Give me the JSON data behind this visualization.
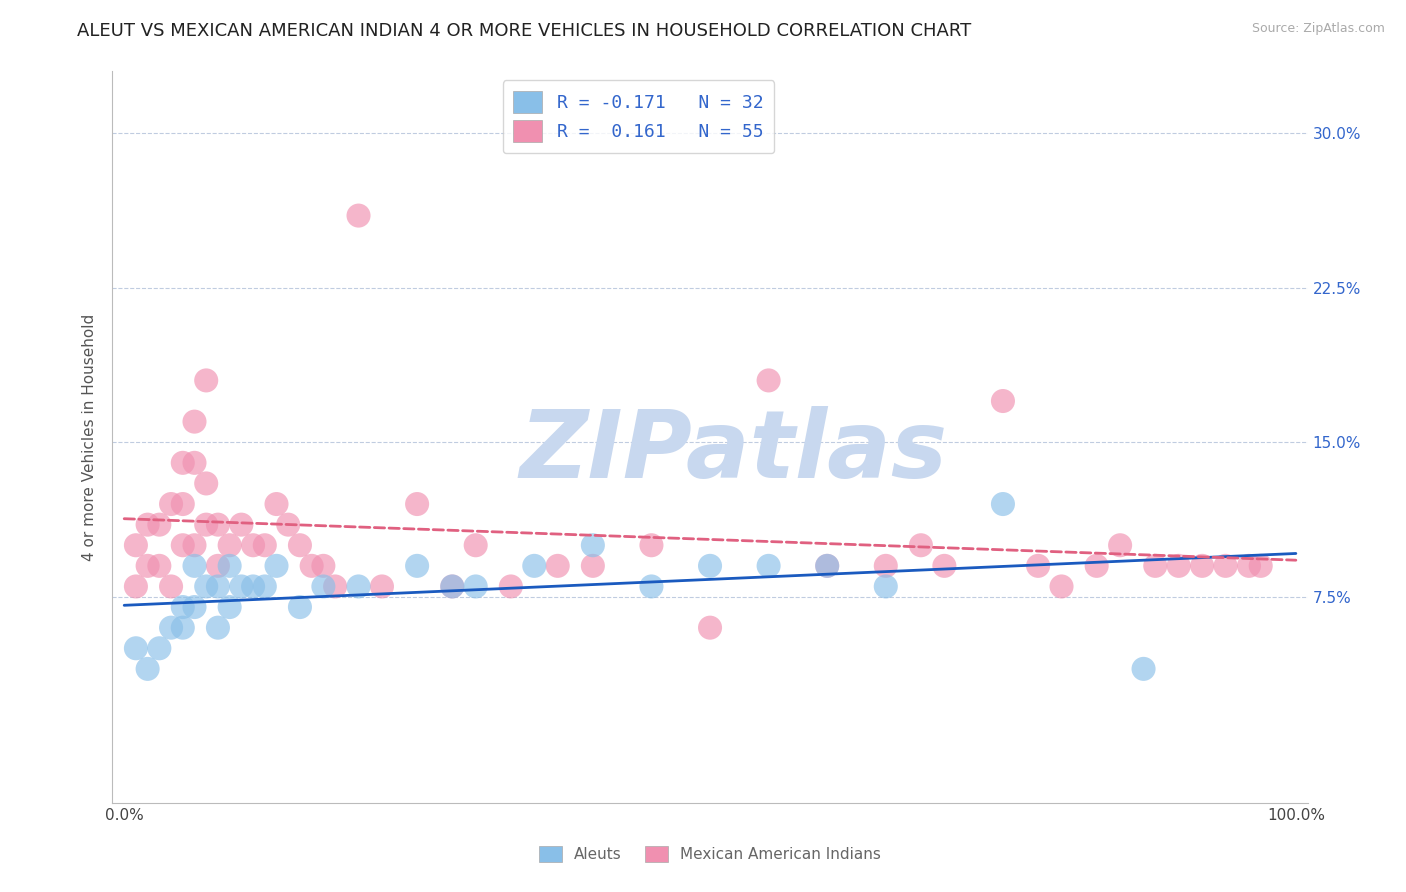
{
  "title": "ALEUT VS MEXICAN AMERICAN INDIAN 4 OR MORE VEHICLES IN HOUSEHOLD CORRELATION CHART",
  "source": "Source: ZipAtlas.com",
  "ylabel": "4 or more Vehicles in Household",
  "xlim": [
    -1,
    101
  ],
  "ylim": [
    -2.5,
    33
  ],
  "yticks": [
    0,
    7.5,
    15.0,
    22.5,
    30.0
  ],
  "ytick_labels_right": [
    "",
    "7.5%",
    "15.0%",
    "22.5%",
    "30.0%"
  ],
  "xticks": [
    0,
    100
  ],
  "xtick_labels": [
    "0.0%",
    "100.0%"
  ],
  "aleuts_color": "#89bfe8",
  "mexican_color": "#f090b0",
  "aleuts_line_color": "#1a5abf",
  "mexican_line_color": "#e06080",
  "background_color": "#ffffff",
  "watermark": "ZIPatlas",
  "watermark_color": "#c8d8ef",
  "grid_color": "#c0cce0",
  "title_fontsize": 13,
  "axis_label_fontsize": 11,
  "tick_fontsize": 11,
  "right_tick_color": "#3366cc",
  "legend_r1": "R = -0.171",
  "legend_n1": "N = 32",
  "legend_r2": "R =  0.161",
  "legend_n2": "N = 55",
  "legend_label1": "Aleuts",
  "legend_label2": "Mexican American Indians",
  "aleuts_x": [
    1,
    2,
    3,
    4,
    5,
    5,
    6,
    6,
    7,
    8,
    8,
    9,
    9,
    10,
    11,
    12,
    13,
    15,
    17,
    20,
    25,
    28,
    30,
    35,
    40,
    45,
    50,
    55,
    60,
    65,
    75,
    87
  ],
  "aleuts_y": [
    5,
    4,
    5,
    6,
    6,
    7,
    7,
    9,
    8,
    6,
    8,
    7,
    9,
    8,
    8,
    8,
    9,
    7,
    8,
    8,
    9,
    8,
    8,
    9,
    10,
    8,
    9,
    9,
    9,
    8,
    12,
    4
  ],
  "mexican_x": [
    1,
    1,
    2,
    2,
    3,
    3,
    4,
    4,
    5,
    5,
    5,
    6,
    6,
    6,
    7,
    7,
    7,
    8,
    8,
    9,
    10,
    11,
    12,
    13,
    14,
    15,
    16,
    17,
    18,
    20,
    22,
    25,
    28,
    30,
    33,
    37,
    40,
    45,
    50,
    55,
    60,
    65,
    68,
    70,
    75,
    78,
    80,
    83,
    85,
    88,
    90,
    92,
    94,
    96,
    97
  ],
  "mexican_y": [
    8,
    10,
    9,
    11,
    9,
    11,
    8,
    12,
    10,
    12,
    14,
    10,
    14,
    16,
    11,
    13,
    18,
    9,
    11,
    10,
    11,
    10,
    10,
    12,
    11,
    10,
    9,
    9,
    8,
    26,
    8,
    12,
    8,
    10,
    8,
    9,
    9,
    10,
    6,
    18,
    9,
    9,
    10,
    9,
    17,
    9,
    8,
    9,
    10,
    9,
    9,
    9,
    9,
    9,
    9
  ]
}
